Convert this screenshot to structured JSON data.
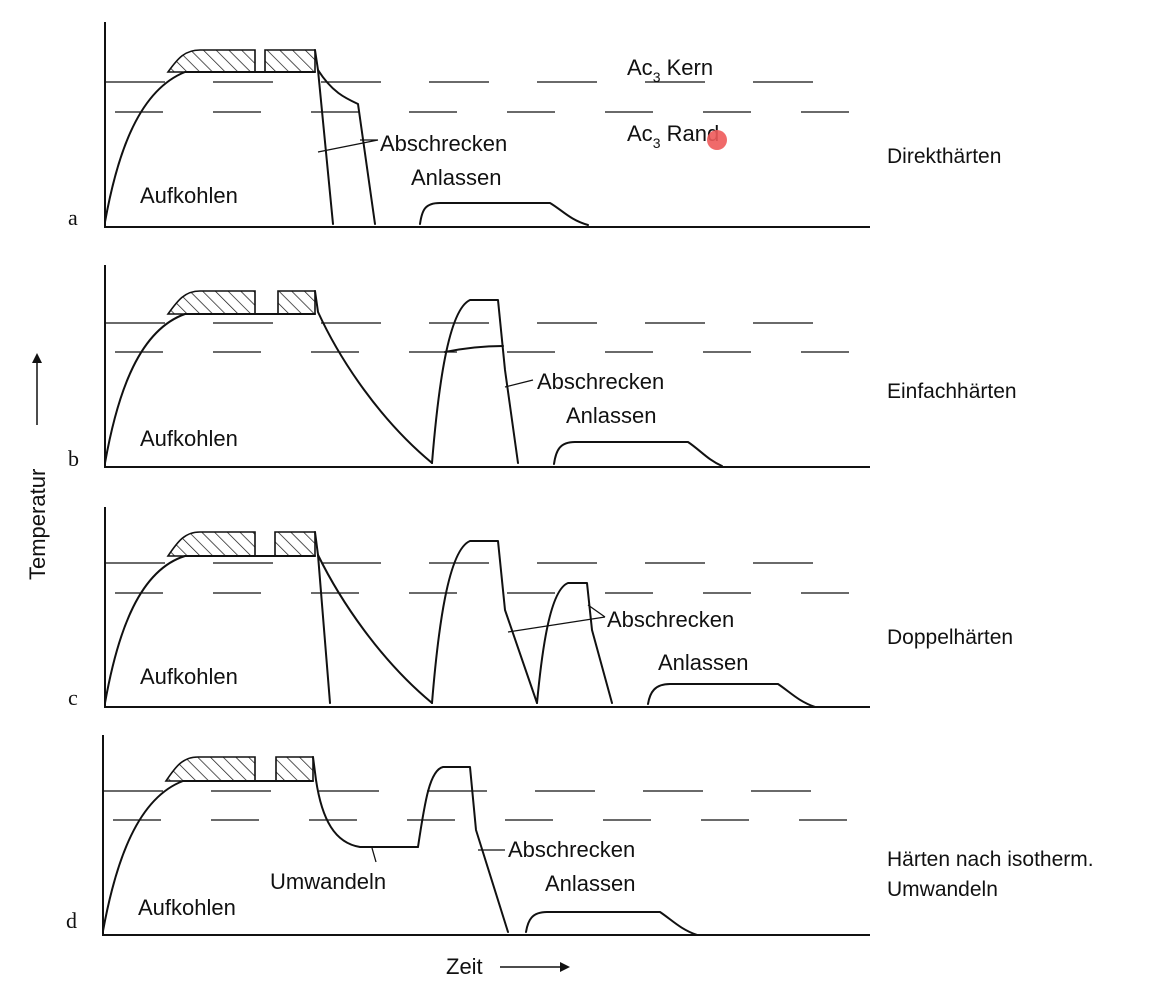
{
  "panels": [
    {
      "letter": "a",
      "process": "Direkthärten",
      "aufkohlen": "Aufkohlen",
      "abschrecken": "Abschrecken",
      "anlassen": "Anlassen",
      "ac3_kern_main": "Ac",
      "ac3_kern_sub": "3",
      "ac3_kern_word": " Kern",
      "ac3_rand_main": "Ac",
      "ac3_rand_sub": "3",
      "ac3_rand_word": " Rand"
    },
    {
      "letter": "b",
      "process": "Einfachhärten",
      "aufkohlen": "Aufkohlen",
      "abschrecken": "Abschrecken",
      "anlassen": "Anlassen"
    },
    {
      "letter": "c",
      "process": "Doppelhärten",
      "aufkohlen": "Aufkohlen",
      "abschrecken": "Abschrecken",
      "anlassen": "Anlassen"
    },
    {
      "letter": "d",
      "process_line1": "Härten nach isotherm.",
      "process_line2": "Umwandeln",
      "aufkohlen": "Aufkohlen",
      "umwandeln": "Umwandeln",
      "abschrecken": "Abschrecken",
      "anlassen": "Anlassen"
    }
  ],
  "axes": {
    "ylabel": "Temperatur",
    "xlabel": "Zeit"
  },
  "marker": {
    "color": "#ee5a5a"
  }
}
